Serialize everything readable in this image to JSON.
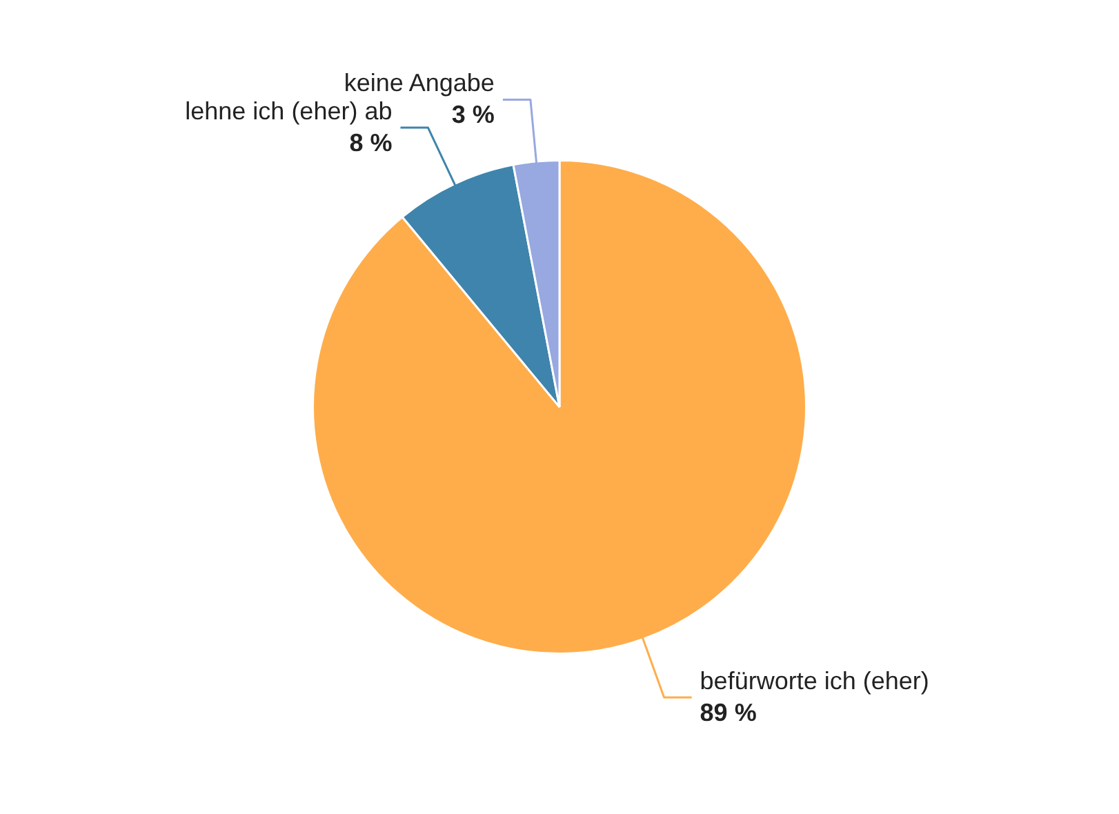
{
  "chart_data": {
    "type": "pie",
    "categories": [
      "befürworte ich (eher)",
      "lehne ich (eher) ab",
      "keine Angabe"
    ],
    "values": [
      89,
      8,
      3
    ],
    "colors": [
      "#ffad4a",
      "#3f84ac",
      "#98a8e0"
    ],
    "value_labels": [
      "89 %",
      "8 %",
      "3 %"
    ],
    "legend": false
  }
}
